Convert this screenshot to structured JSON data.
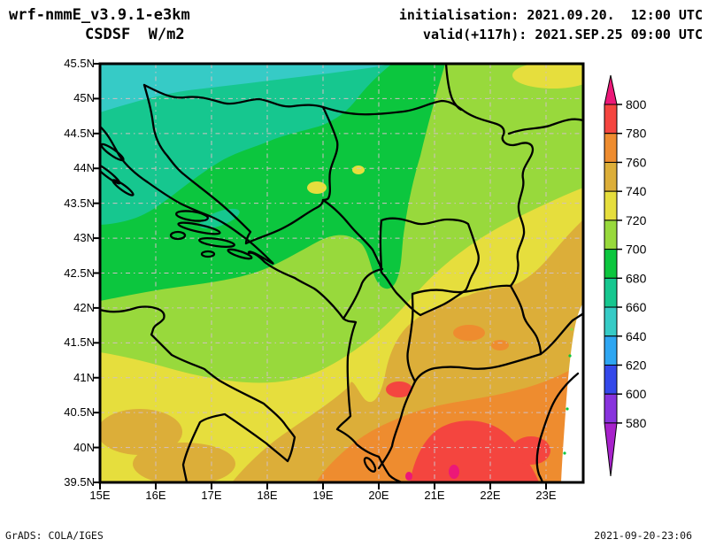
{
  "header": {
    "model": "wrf-nmmE_v3.9.1-e3km",
    "variable": "CSDSF  W/m2",
    "init_line": "initialisation: 2021.09.20.  12:00 UTC",
    "valid_line": "valid(+117h): 2021.SEP.25 09:00 UTC"
  },
  "axes": {
    "lat_labels": [
      "45.5N",
      "45N",
      "44.5N",
      "44N",
      "43.5N",
      "43N",
      "42.5N",
      "42N",
      "41.5N",
      "41N",
      "40.5N",
      "40N",
      "39.5N"
    ],
    "lon_labels": [
      "15E",
      "16E",
      "17E",
      "18E",
      "19E",
      "20E",
      "21E",
      "22E",
      "23E"
    ]
  },
  "colorbar": {
    "units": "W/m2",
    "tick_labels": [
      "800",
      "780",
      "760",
      "740",
      "720",
      "700",
      "680",
      "660",
      "640",
      "620",
      "600",
      "580"
    ],
    "segment_colors_top_to_bottom": [
      "#f4453f",
      "#ee8c2f",
      "#dcae39",
      "#e6de3d",
      "#98d93c",
      "#0cc63e",
      "#16c78f",
      "#36cbc6",
      "#2ea6f2",
      "#3448ea",
      "#8833dd"
    ],
    "above_max_color": "#ec1878",
    "below_min_color": "#a722cb"
  },
  "map": {
    "grid_color": "#d2bfc4",
    "border_color": "#000000",
    "band_colors": {
      "turquoise": "#36cbc6",
      "emerald": "#16c78f",
      "green": "#0cc63e",
      "yellowgreen": "#98d93c",
      "yellow": "#e6de3d",
      "ochre": "#dcae39",
      "orange": "#ee8c2f",
      "red": "#f4453f",
      "magenta": "#ec1878",
      "nodata": "#ffffff"
    }
  },
  "footer": {
    "left": "GrADS: COLA/IGES",
    "right": "2021-09-20-23:06"
  }
}
